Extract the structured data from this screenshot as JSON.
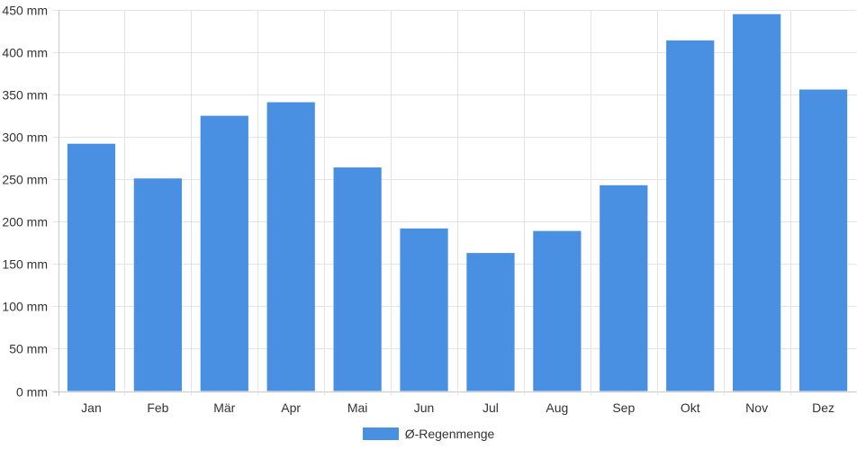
{
  "chart_data": {
    "type": "bar",
    "categories": [
      "Jan",
      "Feb",
      "Mär",
      "Apr",
      "Mai",
      "Jun",
      "Jul",
      "Aug",
      "Sep",
      "Okt",
      "Nov",
      "Dez"
    ],
    "series": [
      {
        "name": "Ø-Regenmenge",
        "values": [
          292,
          251,
          325,
          341,
          264,
          192,
          163,
          189,
          243,
          414,
          445,
          356
        ],
        "color": "#4a90e2"
      }
    ],
    "unit_suffix": " mm",
    "ylim": [
      0,
      450
    ],
    "yticks": [
      0,
      50,
      100,
      150,
      200,
      250,
      300,
      350,
      400,
      450
    ],
    "grid": true,
    "legend_position": "bottom-center"
  }
}
